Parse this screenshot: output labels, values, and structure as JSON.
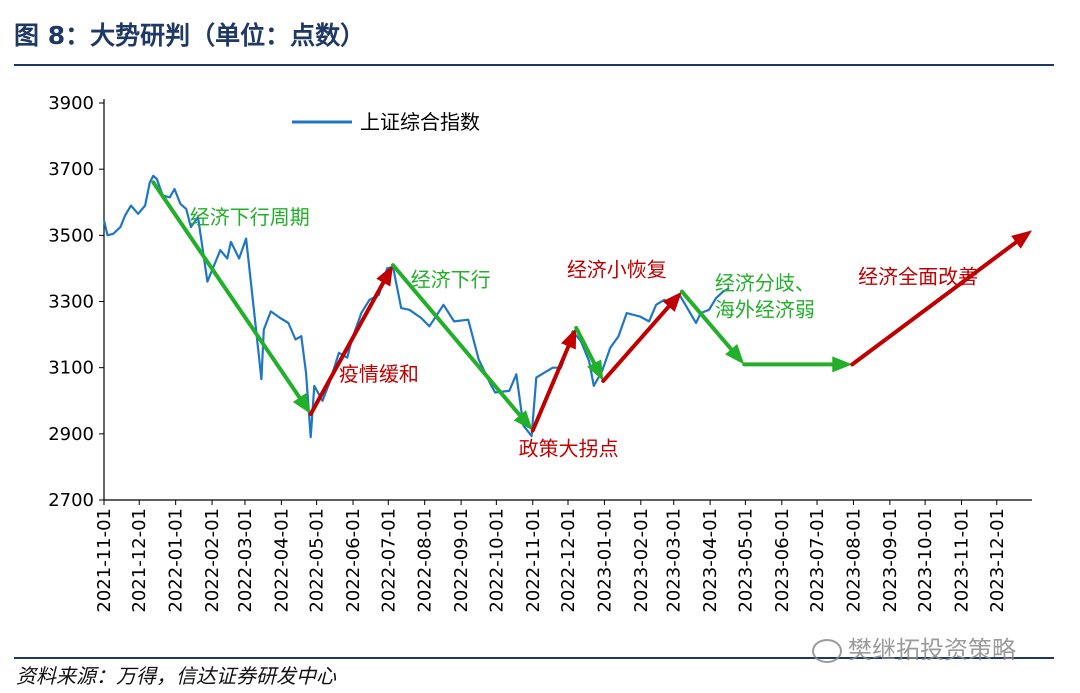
{
  "title": "图 8：大势研判（单位：点数）",
  "source": "资料来源：万得，信达证券研发中心",
  "watermark": "樊继拓投资策略",
  "colors": {
    "header_rule": "#1f3864",
    "index_line": "#1f77c4",
    "arrow_green": "#22b02a",
    "arrow_red": "#c00000",
    "text_green": "#22b02a",
    "text_red": "#c00000"
  },
  "chart_data": {
    "type": "line",
    "xlabel": "",
    "ylabel": "",
    "ylim": [
      2700,
      3900
    ],
    "yticks": [
      2700,
      2900,
      3100,
      3300,
      3500,
      3700,
      3900
    ],
    "xlim": [
      "2021-11-01",
      "2023-12-31"
    ],
    "xticks": [
      "2021-11-01",
      "2021-12-01",
      "2022-01-01",
      "2022-02-01",
      "2022-03-01",
      "2022-04-01",
      "2022-05-01",
      "2022-06-01",
      "2022-07-01",
      "2022-08-01",
      "2022-09-01",
      "2022-10-01",
      "2022-11-01",
      "2022-12-01",
      "2023-01-01",
      "2023-02-01",
      "2023-03-01",
      "2023-04-01",
      "2023-05-01",
      "2023-06-01",
      "2023-07-01",
      "2023-08-01",
      "2023-09-01",
      "2023-10-01",
      "2023-11-01",
      "2023-12-01"
    ],
    "legend": {
      "position": "top-left",
      "entries": [
        "上证综合指数"
      ]
    },
    "series": [
      {
        "name": "上证综合指数",
        "points": [
          [
            "2021-11-01",
            3545
          ],
          [
            "2021-11-04",
            3500
          ],
          [
            "2021-11-09",
            3505
          ],
          [
            "2021-11-15",
            3525
          ],
          [
            "2021-11-19",
            3560
          ],
          [
            "2021-11-24",
            3590
          ],
          [
            "2021-11-30",
            3565
          ],
          [
            "2021-12-06",
            3590
          ],
          [
            "2021-12-10",
            3660
          ],
          [
            "2021-12-13",
            3680
          ],
          [
            "2021-12-16",
            3670
          ],
          [
            "2021-12-21",
            3620
          ],
          [
            "2021-12-27",
            3615
          ],
          [
            "2021-12-31",
            3640
          ],
          [
            "2022-01-05",
            3595
          ],
          [
            "2022-01-10",
            3580
          ],
          [
            "2022-01-14",
            3525
          ],
          [
            "2022-01-20",
            3555
          ],
          [
            "2022-01-25",
            3435
          ],
          [
            "2022-01-28",
            3360
          ],
          [
            "2022-02-08",
            3455
          ],
          [
            "2022-02-14",
            3430
          ],
          [
            "2022-02-17",
            3480
          ],
          [
            "2022-02-24",
            3430
          ],
          [
            "2022-03-02",
            3490
          ],
          [
            "2022-03-08",
            3295
          ],
          [
            "2022-03-15",
            3065
          ],
          [
            "2022-03-17",
            3215
          ],
          [
            "2022-03-23",
            3270
          ],
          [
            "2022-03-31",
            3250
          ],
          [
            "2022-04-07",
            3235
          ],
          [
            "2022-04-13",
            3185
          ],
          [
            "2022-04-18",
            3195
          ],
          [
            "2022-04-22",
            3085
          ],
          [
            "2022-04-26",
            2890
          ],
          [
            "2022-04-29",
            3045
          ],
          [
            "2022-05-06",
            3000
          ],
          [
            "2022-05-12",
            3055
          ],
          [
            "2022-05-20",
            3145
          ],
          [
            "2022-05-27",
            3130
          ],
          [
            "2022-05-31",
            3185
          ],
          [
            "2022-06-08",
            3265
          ],
          [
            "2022-06-15",
            3305
          ],
          [
            "2022-06-23",
            3320
          ],
          [
            "2022-06-30",
            3400
          ],
          [
            "2022-07-05",
            3405
          ],
          [
            "2022-07-12",
            3280
          ],
          [
            "2022-07-19",
            3275
          ],
          [
            "2022-07-29",
            3250
          ],
          [
            "2022-08-05",
            3225
          ],
          [
            "2022-08-17",
            3290
          ],
          [
            "2022-08-26",
            3240
          ],
          [
            "2022-09-07",
            3245
          ],
          [
            "2022-09-16",
            3125
          ],
          [
            "2022-09-26",
            3050
          ],
          [
            "2022-09-30",
            3025
          ],
          [
            "2022-10-12",
            3030
          ],
          [
            "2022-10-18",
            3080
          ],
          [
            "2022-10-24",
            2925
          ],
          [
            "2022-10-31",
            2893
          ],
          [
            "2022-11-04",
            3070
          ],
          [
            "2022-11-11",
            3085
          ],
          [
            "2022-11-18",
            3100
          ],
          [
            "2022-11-25",
            3100
          ],
          [
            "2022-11-30",
            3150
          ],
          [
            "2022-12-05",
            3210
          ],
          [
            "2022-12-12",
            3180
          ],
          [
            "2022-12-19",
            3120
          ],
          [
            "2022-12-23",
            3045
          ],
          [
            "2022-12-30",
            3090
          ],
          [
            "2023-01-06",
            3160
          ],
          [
            "2023-01-13",
            3195
          ],
          [
            "2023-01-20",
            3265
          ],
          [
            "2023-01-31",
            3255
          ],
          [
            "2023-02-08",
            3240
          ],
          [
            "2023-02-14",
            3290
          ],
          [
            "2023-02-21",
            3305
          ],
          [
            "2023-02-28",
            3280
          ],
          [
            "2023-03-06",
            3320
          ],
          [
            "2023-03-15",
            3265
          ],
          [
            "2023-03-20",
            3235
          ],
          [
            "2023-03-24",
            3265
          ],
          [
            "2023-03-31",
            3275
          ],
          [
            "2023-04-06",
            3310
          ],
          [
            "2023-04-12",
            3330
          ],
          [
            "2023-04-17",
            3340
          ]
        ]
      }
    ],
    "arrows": [
      {
        "from": [
          "2021-12-13",
          3660
        ],
        "to": [
          "2022-04-26",
          2960
        ],
        "color": "green"
      },
      {
        "from": [
          "2022-04-26",
          2960
        ],
        "to": [
          "2022-07-05",
          3410
        ],
        "color": "red"
      },
      {
        "from": [
          "2022-07-05",
          3410
        ],
        "to": [
          "2022-11-01",
          2910
        ],
        "color": "green"
      },
      {
        "from": [
          "2022-11-01",
          2910
        ],
        "to": [
          "2022-12-08",
          3220
        ],
        "color": "red"
      },
      {
        "from": [
          "2022-12-08",
          3220
        ],
        "to": [
          "2022-12-31",
          3060
        ],
        "color": "green"
      },
      {
        "from": [
          "2022-12-31",
          3060
        ],
        "to": [
          "2023-03-08",
          3330
        ],
        "color": "red"
      },
      {
        "from": [
          "2023-03-08",
          3330
        ],
        "to": [
          "2023-04-30",
          3110
        ],
        "color": "green"
      },
      {
        "from": [
          "2023-04-30",
          3110
        ],
        "to": [
          "2023-07-31",
          3110
        ],
        "color": "green"
      },
      {
        "from": [
          "2023-07-31",
          3110
        ],
        "to": [
          "2023-12-31",
          3515
        ],
        "color": "red"
      }
    ],
    "annotations": [
      {
        "text": "经济下行周期",
        "color": "green",
        "at": [
          "2022-01-13",
          3535
        ]
      },
      {
        "text": "疫情缓和",
        "color": "red",
        "at": [
          "2022-05-20",
          3060
        ]
      },
      {
        "text": "经济下行",
        "color": "green",
        "at": [
          "2022-07-20",
          3345
        ]
      },
      {
        "text": "政策大拐点",
        "color": "red",
        "at": [
          "2022-10-20",
          2835
        ]
      },
      {
        "text": "经济小恢复",
        "color": "red",
        "at": [
          "2022-11-30",
          3375
        ]
      },
      {
        "text": "经济分歧、",
        "color": "green",
        "at": [
          "2023-04-05",
          3335
        ]
      },
      {
        "text": "海外经济弱",
        "color": "green",
        "at": [
          "2023-04-05",
          3255
        ]
      },
      {
        "text": "经济全面改善",
        "color": "red",
        "at": [
          "2023-08-05",
          3355
        ]
      }
    ]
  }
}
